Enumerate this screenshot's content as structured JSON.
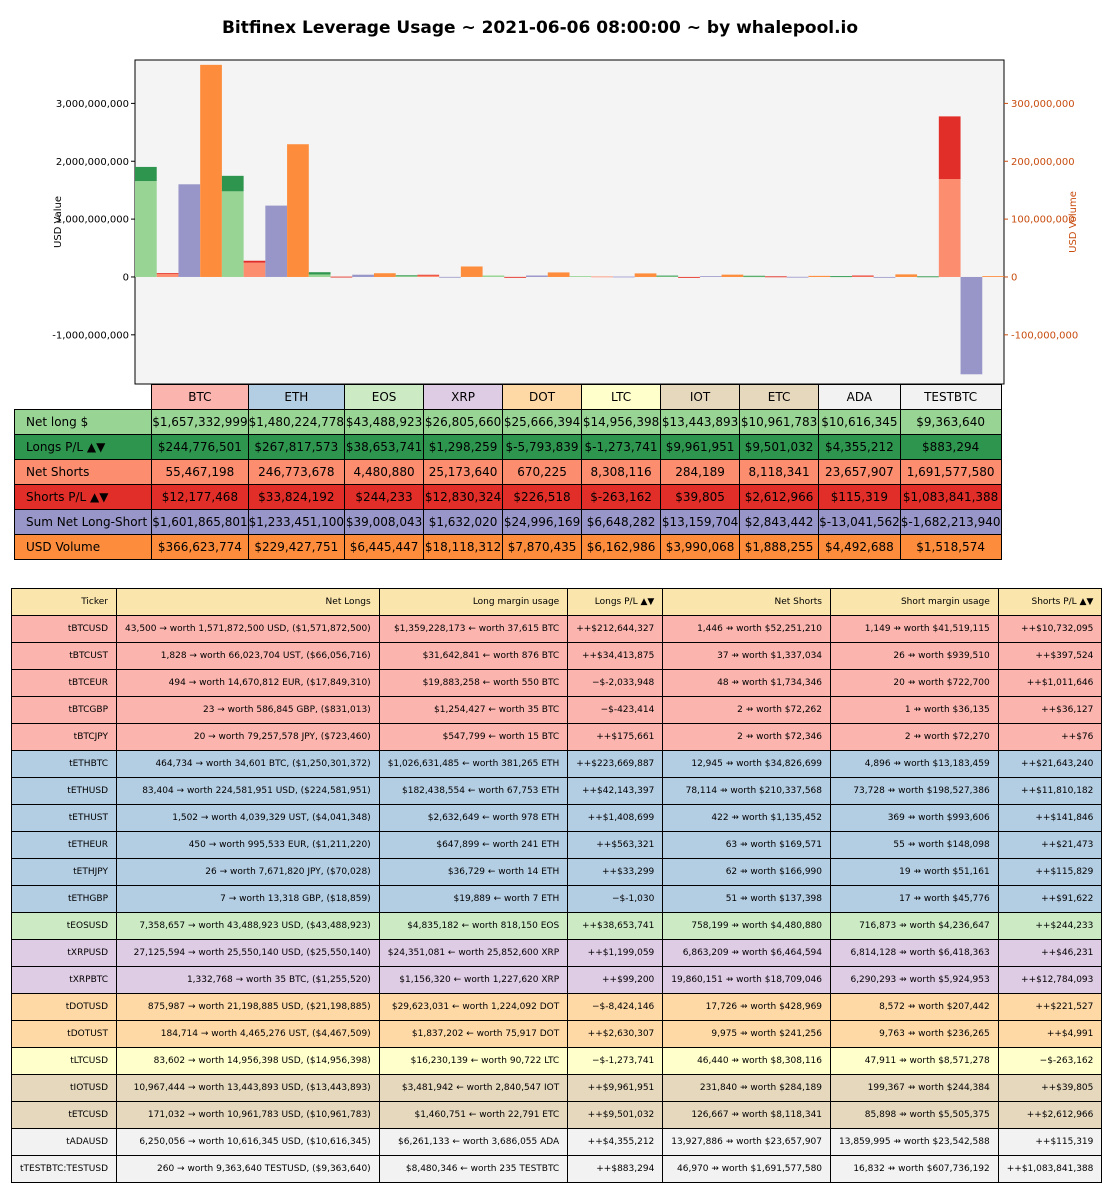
{
  "title": "Bitfinex Leverage Usage ~ 2021-06-06 08:00:00 ~ by whalepool.io",
  "colors": {
    "net_long": "#98d594",
    "longs_pl": "#2e954f",
    "net_shorts": "#fc8d6f",
    "shorts_pl": "#e22e28",
    "sum_net": "#9896c8",
    "usd_volume": "#fd8d3c",
    "plot_bg": "#f4f4f4",
    "right_axis": "#c84d0f"
  },
  "chart_data": {
    "type": "bar",
    "title": "Bitfinex Leverage Usage ~ 2021-06-06 08:00:00 ~ by whalepool.io",
    "ylabel": "USD Value",
    "ylabel_right": "USD Volume",
    "ylim": [
      -1850000000,
      3750000000
    ],
    "ylim_right": [
      -185000000,
      375000000
    ],
    "yticks": [
      "3,000,000,000",
      "2,000,000,000",
      "1,000,000,000",
      "0",
      "-1,000,000,000"
    ],
    "yticks_values": [
      3000000000,
      2000000000,
      1000000000,
      0,
      -1000000000
    ],
    "yticks_right": [
      "300,000,000",
      "200,000,000",
      "100,000,000",
      "0",
      "-100,000,000"
    ],
    "yticks_right_values": [
      300000000,
      200000000,
      100000000,
      0,
      -100000000
    ],
    "categories": [
      "BTC",
      "ETH",
      "EOS",
      "XRP",
      "DOT",
      "LTC",
      "IOT",
      "ETC",
      "ADA",
      "TESTBTC"
    ],
    "category_colors": [
      "#fbb4ae",
      "#b3cde3",
      "#ccebc5",
      "#decbe4",
      "#fed9a6",
      "#ffffcc",
      "#e5d8bd",
      "#e5d8bd",
      "#f2f2f2",
      "#f2f2f2"
    ],
    "series": [
      {
        "name": "Net long $",
        "values": [
          1657332999,
          1480224778,
          43488923,
          26805660,
          25666394,
          14956398,
          13443893,
          10961783,
          10616345,
          9363640
        ]
      },
      {
        "name": "Longs P/L ▲▼",
        "values": [
          244776501,
          267817573,
          38653741,
          1298259,
          -5793839,
          -1273741,
          9961951,
          9501032,
          4355212,
          883294
        ]
      },
      {
        "name": "Net Shorts",
        "values": [
          55467198,
          246773678,
          4480880,
          25173640,
          670225,
          8308116,
          284189,
          8118341,
          23657907,
          1691577580
        ]
      },
      {
        "name": "Shorts P/L ▲▼",
        "values": [
          12177468,
          33824192,
          244233,
          12830324,
          226518,
          -263162,
          39805,
          2612966,
          115319,
          1083841388
        ]
      },
      {
        "name": "Sum Net Long-Short",
        "values": [
          1601865801,
          1233451100,
          39008043,
          1632020,
          24996169,
          6648282,
          13159704,
          2843442,
          -13041562,
          -1682213940
        ]
      },
      {
        "name": "USD Volume",
        "values": [
          366623774,
          229427751,
          6445447,
          18118312,
          7870435,
          6162986,
          3990068,
          1888255,
          4492688,
          1518574
        ]
      }
    ]
  },
  "summary": {
    "rows": [
      {
        "label": "Net long $",
        "values": [
          "$1,657,332,999",
          "$1,480,224,778",
          "$43,488,923",
          "$26,805,660",
          "$25,666,394",
          "$14,956,398",
          "$13,443,893",
          "$10,961,783",
          "$10,616,345",
          "$9,363,640"
        ]
      },
      {
        "label": "Longs P/L ▲▼",
        "values": [
          "$244,776,501",
          "$267,817,573",
          "$38,653,741",
          "$1,298,259",
          "$-5,793,839",
          "$-1,273,741",
          "$9,961,951",
          "$9,501,032",
          "$4,355,212",
          "$883,294"
        ]
      },
      {
        "label": "Net Shorts",
        "values": [
          "55,467,198",
          "246,773,678",
          "4,480,880",
          "25,173,640",
          "670,225",
          "8,308,116",
          "284,189",
          "8,118,341",
          "23,657,907",
          "1,691,577,580"
        ]
      },
      {
        "label": "Shorts P/L ▲▼",
        "values": [
          "$12,177,468",
          "$33,824,192",
          "$244,233",
          "$12,830,324",
          "$226,518",
          "$-263,162",
          "$39,805",
          "$2,612,966",
          "$115,319",
          "$1,083,841,388"
        ]
      },
      {
        "label": "Sum Net Long-Short",
        "values": [
          "$1,601,865,801",
          "$1,233,451,100",
          "$39,008,043",
          "$1,632,020",
          "$24,996,169",
          "$6,648,282",
          "$13,159,704",
          "$2,843,442",
          "$-13,041,562",
          "$-1,682,213,940"
        ]
      },
      {
        "label": "USD Volume",
        "values": [
          "$366,623,774",
          "$229,427,751",
          "$6,445,447",
          "$18,118,312",
          "$7,870,435",
          "$6,162,986",
          "$3,990,068",
          "$1,888,255",
          "$4,492,688",
          "$1,518,574"
        ]
      }
    ]
  },
  "detail": {
    "headers": [
      "Ticker",
      "Net Longs",
      "Long margin usage",
      "Longs P/L ▲▼",
      "Net Shorts",
      "Short margin usage",
      "Shorts P/L ▲▼"
    ],
    "rows": [
      {
        "color": "#fbb4ae",
        "cells": [
          "tBTCUSD",
          "43,500 → worth 1,571,872,500 USD, ($1,571,872,500)",
          "$1,359,228,173 ← worth 37,615 BTC",
          "++$212,644,327",
          "1,446 ⇸ worth $52,251,210",
          "1,149 ⇸ worth $41,519,115",
          "++$10,732,095"
        ]
      },
      {
        "color": "#fbb4ae",
        "cells": [
          "tBTCUST",
          "1,828 → worth 66,023,704 UST, ($66,056,716)",
          "$31,642,841 ← worth 876 BTC",
          "++$34,413,875",
          "37 ⇸ worth $1,337,034",
          "26 ⇸ worth $939,510",
          "++$397,524"
        ]
      },
      {
        "color": "#fbb4ae",
        "cells": [
          "tBTCEUR",
          "494 → worth 14,670,812 EUR, ($17,849,310)",
          "$19,883,258 ← worth 550 BTC",
          "−$-2,033,948",
          "48 ⇸ worth $1,734,346",
          "20 ⇸ worth $722,700",
          "++$1,011,646"
        ]
      },
      {
        "color": "#fbb4ae",
        "cells": [
          "tBTCGBP",
          "23 → worth 586,845 GBP, ($831,013)",
          "$1,254,427 ← worth 35 BTC",
          "−$-423,414",
          "2 ⇸ worth $72,262",
          "1 ⇸ worth $36,135",
          "++$36,127"
        ]
      },
      {
        "color": "#fbb4ae",
        "cells": [
          "tBTCJPY",
          "20 → worth 79,257,578 JPY, ($723,460)",
          "$547,799 ← worth 15 BTC",
          "++$175,661",
          "2 ⇸ worth $72,346",
          "2 ⇸ worth $72,270",
          "++$76"
        ]
      },
      {
        "color": "#b3cde3",
        "cells": [
          "tETHBTC",
          "464,734 → worth 34,601 BTC, ($1,250,301,372)",
          "$1,026,631,485 ← worth 381,265 ETH",
          "++$223,669,887",
          "12,945 ⇸ worth $34,826,699",
          "4,896 ⇸ worth $13,183,459",
          "++$21,643,240"
        ]
      },
      {
        "color": "#b3cde3",
        "cells": [
          "tETHUSD",
          "83,404 → worth 224,581,951 USD, ($224,581,951)",
          "$182,438,554 ← worth 67,753 ETH",
          "++$42,143,397",
          "78,114 ⇸ worth $210,337,568",
          "73,728 ⇸ worth $198,527,386",
          "++$11,810,182"
        ]
      },
      {
        "color": "#b3cde3",
        "cells": [
          "tETHUST",
          "1,502 → worth 4,039,329 UST, ($4,041,348)",
          "$2,632,649 ← worth 978 ETH",
          "++$1,408,699",
          "422 ⇸ worth $1,135,452",
          "369 ⇸ worth $993,606",
          "++$141,846"
        ]
      },
      {
        "color": "#b3cde3",
        "cells": [
          "tETHEUR",
          "450 → worth 995,533 EUR, ($1,211,220)",
          "$647,899 ← worth 241 ETH",
          "++$563,321",
          "63 ⇸ worth $169,571",
          "55 ⇸ worth $148,098",
          "++$21,473"
        ]
      },
      {
        "color": "#b3cde3",
        "cells": [
          "tETHJPY",
          "26 → worth 7,671,820 JPY, ($70,028)",
          "$36,729 ← worth 14 ETH",
          "++$33,299",
          "62 ⇸ worth $166,990",
          "19 ⇸ worth $51,161",
          "++$115,829"
        ]
      },
      {
        "color": "#b3cde3",
        "cells": [
          "tETHGBP",
          "7 → worth 13,318 GBP, ($18,859)",
          "$19,889 ← worth 7 ETH",
          "−$-1,030",
          "51 ⇸ worth $137,398",
          "17 ⇸ worth $45,776",
          "++$91,622"
        ]
      },
      {
        "color": "#ccebc5",
        "cells": [
          "tEOSUSD",
          "7,358,657 → worth 43,488,923 USD, ($43,488,923)",
          "$4,835,182 ← worth 818,150 EOS",
          "++$38,653,741",
          "758,199 ⇸ worth $4,480,880",
          "716,873 ⇸ worth $4,236,647",
          "++$244,233"
        ]
      },
      {
        "color": "#decbe4",
        "cells": [
          "tXRPUSD",
          "27,125,594 → worth 25,550,140 USD, ($25,550,140)",
          "$24,351,081 ← worth 25,852,600 XRP",
          "++$1,199,059",
          "6,863,209 ⇸ worth $6,464,594",
          "6,814,128 ⇸ worth $6,418,363",
          "++$46,231"
        ]
      },
      {
        "color": "#decbe4",
        "cells": [
          "tXRPBTC",
          "1,332,768 → worth 35 BTC, ($1,255,520)",
          "$1,156,320 ← worth 1,227,620 XRP",
          "++$99,200",
          "19,860,151 ⇸ worth $18,709,046",
          "6,290,293 ⇸ worth $5,924,953",
          "++$12,784,093"
        ]
      },
      {
        "color": "#fed9a6",
        "cells": [
          "tDOTUSD",
          "875,987 → worth 21,198,885 USD, ($21,198,885)",
          "$29,623,031 ← worth 1,224,092 DOT",
          "−$-8,424,146",
          "17,726 ⇸ worth $428,969",
          "8,572 ⇸ worth $207,442",
          "++$221,527"
        ]
      },
      {
        "color": "#fed9a6",
        "cells": [
          "tDOTUST",
          "184,714 → worth 4,465,276 UST, ($4,467,509)",
          "$1,837,202 ← worth 75,917 DOT",
          "++$2,630,307",
          "9,975 ⇸ worth $241,256",
          "9,763 ⇸ worth $236,265",
          "++$4,991"
        ]
      },
      {
        "color": "#ffffcc",
        "cells": [
          "tLTCUSD",
          "83,602 → worth 14,956,398 USD, ($14,956,398)",
          "$16,230,139 ← worth 90,722 LTC",
          "−$-1,273,741",
          "46,440 ⇸ worth $8,308,116",
          "47,911 ⇸ worth $8,571,278",
          "−$-263,162"
        ]
      },
      {
        "color": "#e5d8bd",
        "cells": [
          "tIOTUSD",
          "10,967,444 → worth 13,443,893 USD, ($13,443,893)",
          "$3,481,942 ← worth 2,840,547 IOT",
          "++$9,961,951",
          "231,840 ⇸ worth $284,189",
          "199,367 ⇸ worth $244,384",
          "++$39,805"
        ]
      },
      {
        "color": "#e5d8bd",
        "cells": [
          "tETCUSD",
          "171,032 → worth 10,961,783 USD, ($10,961,783)",
          "$1,460,751 ← worth 22,791 ETC",
          "++$9,501,032",
          "126,667 ⇸ worth $8,118,341",
          "85,898 ⇸ worth $5,505,375",
          "++$2,612,966"
        ]
      },
      {
        "color": "#f2f2f2",
        "cells": [
          "tADAUSD",
          "6,250,056 → worth 10,616,345 USD, ($10,616,345)",
          "$6,261,133 ← worth 3,686,055 ADA",
          "++$4,355,212",
          "13,927,886 ⇸ worth $23,657,907",
          "13,859,995 ⇸ worth $23,542,588",
          "++$115,319"
        ]
      },
      {
        "color": "#f2f2f2",
        "cells": [
          "tTESTBTC:TESTUSD",
          "260 → worth 9,363,640 TESTUSD, ($9,363,640)",
          "$8,480,346 ← worth 235 TESTBTC",
          "++$883,294",
          "46,970 ⇸ worth $1,691,577,580",
          "16,832 ⇸ worth $607,736,192",
          "++$1,083,841,388"
        ]
      }
    ]
  }
}
